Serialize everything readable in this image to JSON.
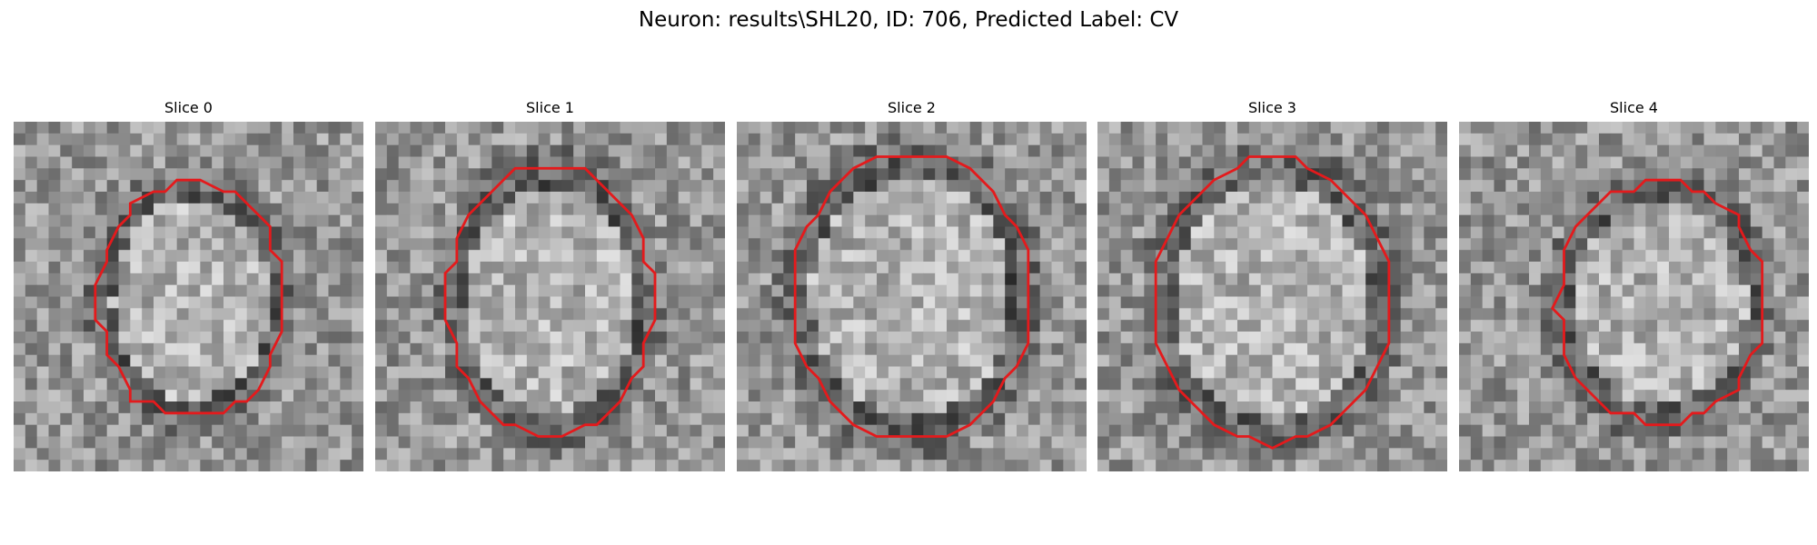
{
  "figure": {
    "title": "Neuron: results\\SHL20, ID: 706, Predicted Label: CV"
  },
  "panels": [
    {
      "title": "Slice 0",
      "image": "grayscale-microscopy-patch",
      "overlay": "red-contour"
    },
    {
      "title": "Slice 1",
      "image": "grayscale-microscopy-patch",
      "overlay": "red-contour"
    },
    {
      "title": "Slice 2",
      "image": "grayscale-microscopy-patch",
      "overlay": "red-contour"
    },
    {
      "title": "Slice 3",
      "image": "grayscale-microscopy-patch",
      "overlay": "red-contour"
    },
    {
      "title": "Slice 4",
      "image": "grayscale-microscopy-patch",
      "overlay": "red-contour"
    }
  ],
  "colors": {
    "contour": "#e41a1c",
    "background": "#ffffff"
  }
}
